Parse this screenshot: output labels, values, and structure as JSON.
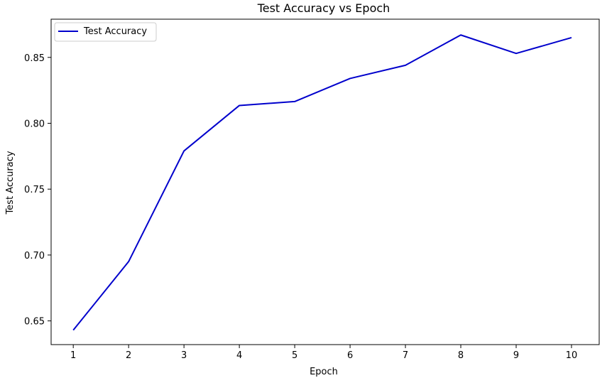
{
  "chart_data": {
    "type": "line",
    "title": "Test Accuracy vs Epoch",
    "xlabel": "Epoch",
    "ylabel": "Test Accuracy",
    "x": [
      1,
      2,
      3,
      4,
      5,
      6,
      7,
      8,
      9,
      10
    ],
    "series": [
      {
        "name": "Test Accuracy",
        "color": "#0000cc",
        "values": [
          0.643,
          0.695,
          0.779,
          0.8135,
          0.8165,
          0.834,
          0.844,
          0.867,
          0.853,
          0.865
        ]
      }
    ],
    "x_ticks": [
      "1",
      "2",
      "3",
      "4",
      "5",
      "6",
      "7",
      "8",
      "9",
      "10"
    ],
    "y_ticks": [
      "0.65",
      "0.70",
      "0.75",
      "0.80",
      "0.85"
    ],
    "xlim": [
      0.6,
      10.5
    ],
    "ylim": [
      0.632,
      0.879
    ],
    "grid": false,
    "legend_position": "top-left"
  }
}
